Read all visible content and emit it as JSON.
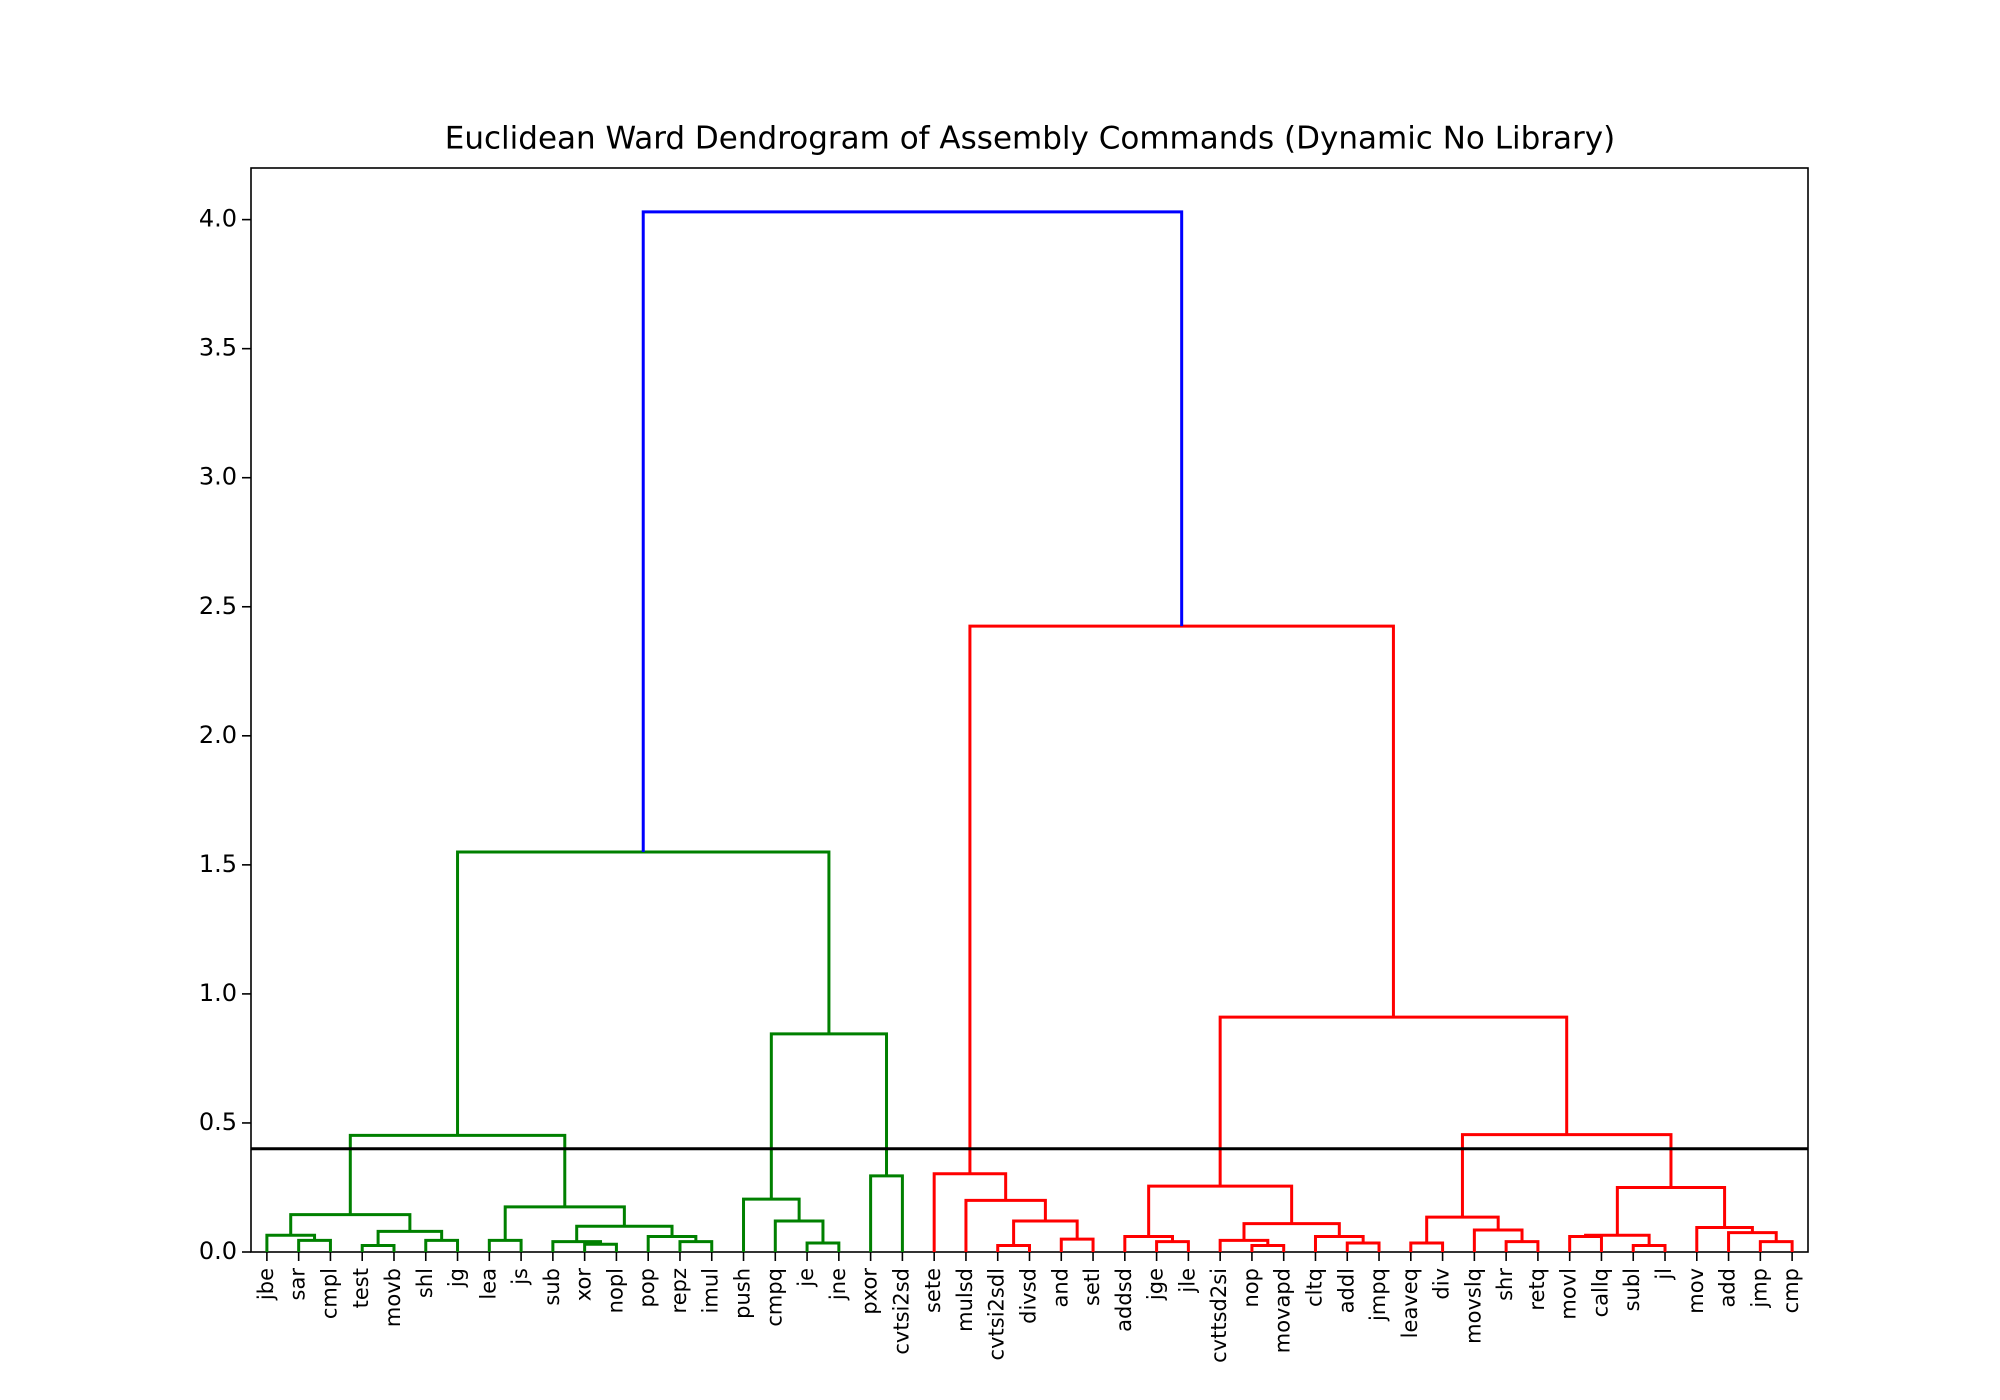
{
  "chart_data": {
    "type": "dendrogram",
    "title": "Euclidean Ward Dendrogram of Assembly Commands (Dynamic No Library)",
    "leaves": [
      "jbe",
      "sar",
      "cmpl",
      "test",
      "movb",
      "shl",
      "jg",
      "lea",
      "js",
      "sub",
      "xor",
      "nopl",
      "pop",
      "repz",
      "imul",
      "push",
      "cmpq",
      "je",
      "jne",
      "pxor",
      "cvtsi2sd",
      "sete",
      "mulsd",
      "cvtsi2sdl",
      "divsd",
      "and",
      "setl",
      "addsd",
      "jge",
      "jle",
      "cvttsd2si",
      "nop",
      "movapd",
      "cltq",
      "addl",
      "jmpq",
      "leaveq",
      "div",
      "movslq",
      "shr",
      "retq",
      "movl",
      "callq",
      "subl",
      "jl",
      "mov",
      "add",
      "jmp",
      "cmp"
    ],
    "merges": [
      {
        "left": 1,
        "right": 2,
        "height": 0.045,
        "color": "#008000"
      },
      {
        "left": 0,
        "right": 49,
        "height": 0.065,
        "color": "#008000"
      },
      {
        "left": 3,
        "right": 4,
        "height": 0.025,
        "color": "#008000"
      },
      {
        "left": 5,
        "right": 6,
        "height": 0.045,
        "color": "#008000"
      },
      {
        "left": 51,
        "right": 52,
        "height": 0.08,
        "color": "#008000"
      },
      {
        "left": 50,
        "right": 53,
        "height": 0.145,
        "color": "#008000"
      },
      {
        "left": 7,
        "right": 8,
        "height": 0.045,
        "color": "#008000"
      },
      {
        "left": 10,
        "right": 11,
        "height": 0.03,
        "color": "#008000"
      },
      {
        "left": 9,
        "right": 56,
        "height": 0.04,
        "color": "#008000"
      },
      {
        "left": 13,
        "right": 14,
        "height": 0.04,
        "color": "#008000"
      },
      {
        "left": 12,
        "right": 58,
        "height": 0.06,
        "color": "#008000"
      },
      {
        "left": 57,
        "right": 59,
        "height": 0.1,
        "color": "#008000"
      },
      {
        "left": 55,
        "right": 60,
        "height": 0.175,
        "color": "#008000"
      },
      {
        "left": 54,
        "right": 61,
        "height": 0.452,
        "color": "#008000"
      },
      {
        "left": 17,
        "right": 18,
        "height": 0.035,
        "color": "#008000"
      },
      {
        "left": 16,
        "right": 63,
        "height": 0.12,
        "color": "#008000"
      },
      {
        "left": 15,
        "right": 64,
        "height": 0.205,
        "color": "#008000"
      },
      {
        "left": 19,
        "right": 20,
        "height": 0.295,
        "color": "#008000"
      },
      {
        "left": 65,
        "right": 66,
        "height": 0.845,
        "color": "#008000"
      },
      {
        "left": 62,
        "right": 67,
        "height": 1.55,
        "color": "#008000"
      },
      {
        "left": 23,
        "right": 24,
        "height": 0.025,
        "color": "#ff0000"
      },
      {
        "left": 25,
        "right": 26,
        "height": 0.05,
        "color": "#ff0000"
      },
      {
        "left": 69,
        "right": 70,
        "height": 0.12,
        "color": "#ff0000"
      },
      {
        "left": 22,
        "right": 71,
        "height": 0.2,
        "color": "#ff0000"
      },
      {
        "left": 21,
        "right": 72,
        "height": 0.303,
        "color": "#ff0000"
      },
      {
        "left": 28,
        "right": 29,
        "height": 0.04,
        "color": "#ff0000"
      },
      {
        "left": 27,
        "right": 74,
        "height": 0.06,
        "color": "#ff0000"
      },
      {
        "left": 31,
        "right": 32,
        "height": 0.025,
        "color": "#ff0000"
      },
      {
        "left": 30,
        "right": 76,
        "height": 0.045,
        "color": "#ff0000"
      },
      {
        "left": 34,
        "right": 35,
        "height": 0.035,
        "color": "#ff0000"
      },
      {
        "left": 33,
        "right": 78,
        "height": 0.06,
        "color": "#ff0000"
      },
      {
        "left": 77,
        "right": 79,
        "height": 0.11,
        "color": "#ff0000"
      },
      {
        "left": 75,
        "right": 80,
        "height": 0.255,
        "color": "#ff0000"
      },
      {
        "left": 36,
        "right": 37,
        "height": 0.035,
        "color": "#ff0000"
      },
      {
        "left": 39,
        "right": 40,
        "height": 0.04,
        "color": "#ff0000"
      },
      {
        "left": 38,
        "right": 83,
        "height": 0.085,
        "color": "#ff0000"
      },
      {
        "left": 82,
        "right": 84,
        "height": 0.135,
        "color": "#ff0000"
      },
      {
        "left": 43,
        "right": 44,
        "height": 0.025,
        "color": "#ff0000"
      },
      {
        "left": 41,
        "right": 42,
        "height": 0.06,
        "color": "#ff0000"
      },
      {
        "left": 87,
        "right": 86,
        "height": 0.065,
        "color": "#ff0000"
      },
      {
        "left": 47,
        "right": 48,
        "height": 0.04,
        "color": "#ff0000"
      },
      {
        "left": 46,
        "right": 89,
        "height": 0.075,
        "color": "#ff0000"
      },
      {
        "left": 45,
        "right": 90,
        "height": 0.095,
        "color": "#ff0000"
      },
      {
        "left": 88,
        "right": 91,
        "height": 0.25,
        "color": "#ff0000"
      },
      {
        "left": 85,
        "right": 92,
        "height": 0.455,
        "color": "#ff0000"
      },
      {
        "left": 81,
        "right": 93,
        "height": 0.91,
        "color": "#ff0000"
      },
      {
        "left": 73,
        "right": 94,
        "height": 2.425,
        "color": "#ff0000"
      },
      {
        "left": 68,
        "right": 95,
        "height": 4.03,
        "color": "#0000ff"
      }
    ],
    "threshold": 0.4,
    "threshold_color": "#000000",
    "ylim": [
      0,
      4.2
    ],
    "yticks": [
      {
        "value": 0,
        "label": "0.0"
      },
      {
        "value": 0.5,
        "label": "0.5"
      },
      {
        "value": 1,
        "label": "1.0"
      },
      {
        "value": 1.5,
        "label": "1.5"
      },
      {
        "value": 2,
        "label": "2.0"
      },
      {
        "value": 2.5,
        "label": "2.5"
      },
      {
        "value": 3,
        "label": "3.0"
      },
      {
        "value": 3.5,
        "label": "3.5"
      },
      {
        "value": 4,
        "label": "4.0"
      }
    ]
  }
}
